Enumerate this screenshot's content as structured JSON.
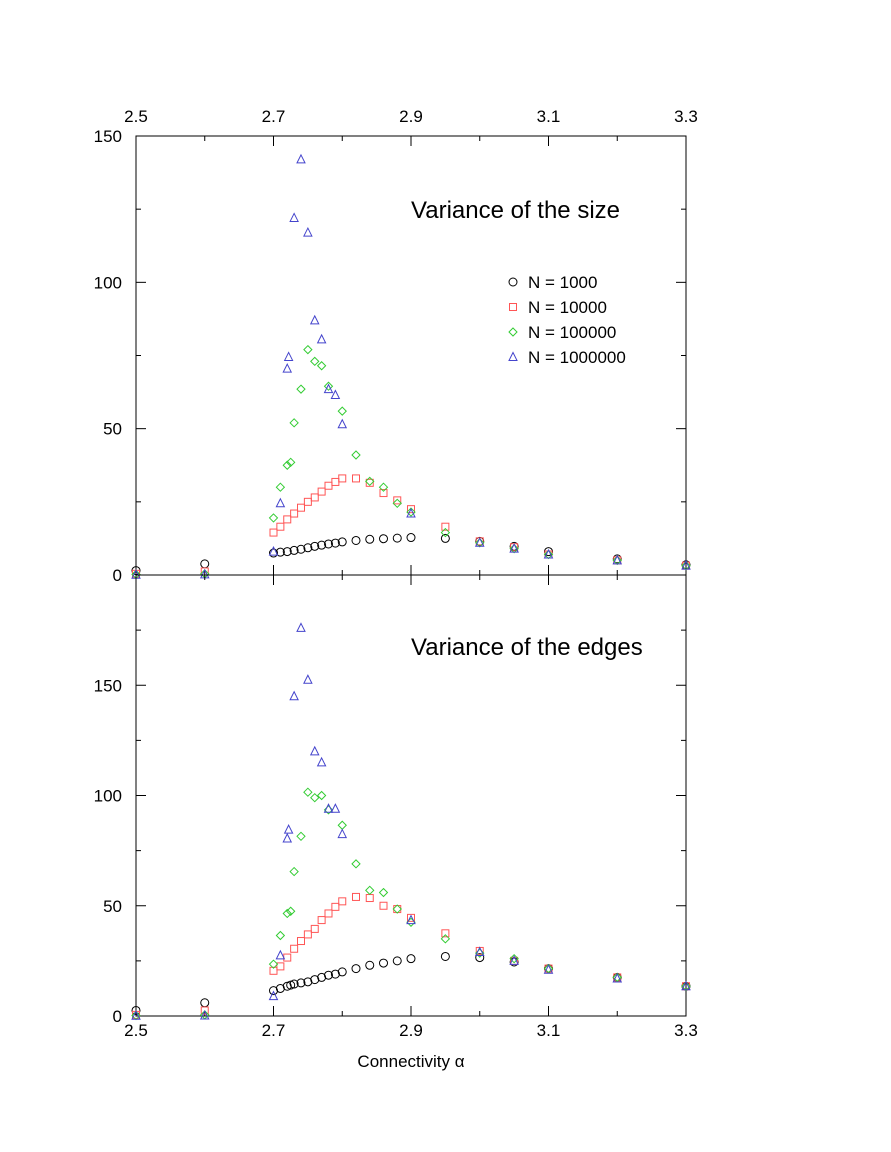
{
  "chart_data": [
    {
      "type": "scatter",
      "title": "Variance of the size",
      "xlabel": "",
      "ylabel": "",
      "xlim": [
        2.5,
        3.3
      ],
      "ylim": [
        0,
        150
      ],
      "x_ticks": [
        "2.5",
        "2.7",
        "2.9",
        "3.1",
        "3.3"
      ],
      "top_x_ticks": [
        "2.5",
        "2.7",
        "2.9",
        "3.1",
        "3.3"
      ],
      "y_ticks": [
        "0",
        "50",
        "100",
        "150"
      ],
      "grid": false,
      "legend_position": "right",
      "series": [
        {
          "name": "N = 1000",
          "marker": "circle",
          "color": "#000000",
          "points": [
            [
              2.5,
              1.5
            ],
            [
              2.6,
              3.8
            ],
            [
              2.7,
              7.5
            ],
            [
              2.71,
              7.8
            ],
            [
              2.72,
              8.0
            ],
            [
              2.73,
              8.4
            ],
            [
              2.74,
              8.8
            ],
            [
              2.75,
              9.3
            ],
            [
              2.76,
              9.8
            ],
            [
              2.77,
              10.2
            ],
            [
              2.78,
              10.6
            ],
            [
              2.79,
              10.9
            ],
            [
              2.8,
              11.3
            ],
            [
              2.82,
              11.8
            ],
            [
              2.84,
              12.2
            ],
            [
              2.86,
              12.4
            ],
            [
              2.88,
              12.6
            ],
            [
              2.9,
              12.8
            ],
            [
              2.95,
              12.5
            ],
            [
              3.0,
              11.5
            ],
            [
              3.05,
              9.8
            ],
            [
              3.1,
              8.0
            ],
            [
              3.2,
              5.5
            ],
            [
              3.3,
              3.5
            ]
          ]
        },
        {
          "name": "N = 10000",
          "marker": "square",
          "color": "#ff5555",
          "points": [
            [
              2.5,
              0.4
            ],
            [
              2.6,
              1.2
            ],
            [
              2.7,
              14.5
            ],
            [
              2.71,
              16.5
            ],
            [
              2.72,
              19.0
            ],
            [
              2.73,
              21.0
            ],
            [
              2.74,
              23.0
            ],
            [
              2.75,
              25.0
            ],
            [
              2.76,
              26.5
            ],
            [
              2.77,
              28.5
            ],
            [
              2.78,
              30.5
            ],
            [
              2.79,
              31.8
            ],
            [
              2.8,
              33.0
            ],
            [
              2.82,
              33.0
            ],
            [
              2.84,
              31.5
            ],
            [
              2.86,
              28.0
            ],
            [
              2.88,
              25.5
            ],
            [
              2.9,
              22.5
            ],
            [
              2.95,
              16.5
            ],
            [
              3.0,
              11.5
            ],
            [
              3.05,
              9.5
            ],
            [
              3.1,
              7.0
            ],
            [
              3.2,
              5.0
            ],
            [
              3.3,
              3.2
            ]
          ]
        },
        {
          "name": "N = 100000",
          "marker": "diamond",
          "color": "#33cc33",
          "points": [
            [
              2.5,
              0.2
            ],
            [
              2.6,
              0.4
            ],
            [
              2.7,
              19.5
            ],
            [
              2.71,
              30.0
            ],
            [
              2.72,
              37.5
            ],
            [
              2.725,
              38.5
            ],
            [
              2.73,
              52.0
            ],
            [
              2.74,
              63.5
            ],
            [
              2.75,
              77.0
            ],
            [
              2.76,
              73.0
            ],
            [
              2.77,
              71.5
            ],
            [
              2.78,
              64.5
            ],
            [
              2.8,
              56.0
            ],
            [
              2.82,
              41.0
            ],
            [
              2.84,
              32.0
            ],
            [
              2.86,
              30.0
            ],
            [
              2.88,
              24.5
            ],
            [
              2.9,
              21.5
            ],
            [
              2.95,
              14.5
            ],
            [
              3.0,
              11.0
            ],
            [
              3.05,
              9.0
            ],
            [
              3.1,
              7.0
            ],
            [
              3.2,
              5.0
            ],
            [
              3.3,
              3.2
            ]
          ]
        },
        {
          "name": "N = 1000000",
          "marker": "triangle",
          "color": "#4444cc",
          "points": [
            [
              2.5,
              0.1
            ],
            [
              2.6,
              0.2
            ],
            [
              2.7,
              8.0
            ],
            [
              2.71,
              24.5
            ],
            [
              2.72,
              70.5
            ],
            [
              2.722,
              74.5
            ],
            [
              2.73,
              122.0
            ],
            [
              2.74,
              142.0
            ],
            [
              2.75,
              117.0
            ],
            [
              2.76,
              87.0
            ],
            [
              2.77,
              80.5
            ],
            [
              2.78,
              63.5
            ],
            [
              2.79,
              61.5
            ],
            [
              2.8,
              51.5
            ],
            [
              2.9,
              21.0
            ],
            [
              3.0,
              11.0
            ],
            [
              3.05,
              9.0
            ],
            [
              3.1,
              7.0
            ],
            [
              3.2,
              5.0
            ],
            [
              3.3,
              3.2
            ]
          ]
        }
      ]
    },
    {
      "type": "scatter",
      "title": "Variance of the edges",
      "xlabel": "Connectivity α",
      "ylabel": "",
      "xlim": [
        2.5,
        3.3
      ],
      "ylim": [
        0,
        200
      ],
      "x_ticks": [
        "2.5",
        "2.7",
        "2.9",
        "3.1",
        "3.3"
      ],
      "y_ticks": [
        "0",
        "50",
        "100",
        "150"
      ],
      "grid": false,
      "series": [
        {
          "name": "N = 1000",
          "marker": "circle",
          "color": "#000000",
          "points": [
            [
              2.5,
              2.5
            ],
            [
              2.6,
              6.0
            ],
            [
              2.7,
              11.5
            ],
            [
              2.71,
              12.5
            ],
            [
              2.72,
              13.5
            ],
            [
              2.725,
              14.0
            ],
            [
              2.73,
              14.5
            ],
            [
              2.74,
              15.0
            ],
            [
              2.75,
              15.5
            ],
            [
              2.76,
              16.5
            ],
            [
              2.77,
              17.5
            ],
            [
              2.78,
              18.5
            ],
            [
              2.79,
              19.0
            ],
            [
              2.8,
              20.0
            ],
            [
              2.82,
              21.5
            ],
            [
              2.84,
              23.0
            ],
            [
              2.86,
              24.0
            ],
            [
              2.88,
              25.0
            ],
            [
              2.9,
              26.0
            ],
            [
              2.95,
              27.0
            ],
            [
              3.0,
              26.5
            ],
            [
              3.05,
              24.5
            ],
            [
              3.1,
              21.5
            ],
            [
              3.2,
              17.5
            ],
            [
              3.3,
              13.5
            ]
          ]
        },
        {
          "name": "N = 10000",
          "marker": "square",
          "color": "#ff5555",
          "points": [
            [
              2.5,
              0.5
            ],
            [
              2.6,
              2.5
            ],
            [
              2.7,
              20.5
            ],
            [
              2.71,
              22.5
            ],
            [
              2.72,
              26.5
            ],
            [
              2.73,
              30.5
            ],
            [
              2.74,
              34.0
            ],
            [
              2.75,
              37.0
            ],
            [
              2.76,
              39.5
            ],
            [
              2.77,
              43.5
            ],
            [
              2.78,
              46.5
            ],
            [
              2.79,
              49.5
            ],
            [
              2.8,
              52.0
            ],
            [
              2.82,
              54.0
            ],
            [
              2.84,
              53.5
            ],
            [
              2.86,
              50.0
            ],
            [
              2.88,
              48.5
            ],
            [
              2.9,
              44.5
            ],
            [
              2.95,
              37.5
            ],
            [
              3.0,
              29.5
            ],
            [
              3.05,
              25.0
            ],
            [
              3.1,
              21.5
            ],
            [
              3.2,
              17.5
            ],
            [
              3.3,
              13.5
            ]
          ]
        },
        {
          "name": "N = 100000",
          "marker": "diamond",
          "color": "#33cc33",
          "points": [
            [
              2.5,
              0.2
            ],
            [
              2.6,
              0.5
            ],
            [
              2.7,
              23.5
            ],
            [
              2.71,
              36.5
            ],
            [
              2.72,
              46.5
            ],
            [
              2.725,
              47.5
            ],
            [
              2.73,
              65.5
            ],
            [
              2.74,
              81.5
            ],
            [
              2.75,
              101.5
            ],
            [
              2.76,
              99.0
            ],
            [
              2.77,
              100.0
            ],
            [
              2.78,
              93.5
            ],
            [
              2.8,
              86.5
            ],
            [
              2.82,
              69.0
            ],
            [
              2.84,
              57.0
            ],
            [
              2.86,
              56.0
            ],
            [
              2.88,
              48.5
            ],
            [
              2.9,
              42.5
            ],
            [
              2.95,
              35.0
            ],
            [
              3.0,
              28.5
            ],
            [
              3.05,
              26.0
            ],
            [
              3.1,
              21.5
            ],
            [
              3.2,
              17.5
            ],
            [
              3.3,
              13.5
            ]
          ]
        },
        {
          "name": "N = 1000000",
          "marker": "triangle",
          "color": "#4444cc",
          "points": [
            [
              2.5,
              0.1
            ],
            [
              2.6,
              0.2
            ],
            [
              2.7,
              9.0
            ],
            [
              2.71,
              27.5
            ],
            [
              2.72,
              80.5
            ],
            [
              2.722,
              84.5
            ],
            [
              2.73,
              145.0
            ],
            [
              2.74,
              176.0
            ],
            [
              2.75,
              152.5
            ],
            [
              2.76,
              120.0
            ],
            [
              2.77,
              115.0
            ],
            [
              2.78,
              94.0
            ],
            [
              2.79,
              94.0
            ],
            [
              2.8,
              82.5
            ],
            [
              2.9,
              43.5
            ],
            [
              3.0,
              29.0
            ],
            [
              3.05,
              25.0
            ],
            [
              3.1,
              21.0
            ],
            [
              3.2,
              17.0
            ],
            [
              3.3,
              13.5
            ]
          ]
        }
      ]
    }
  ]
}
